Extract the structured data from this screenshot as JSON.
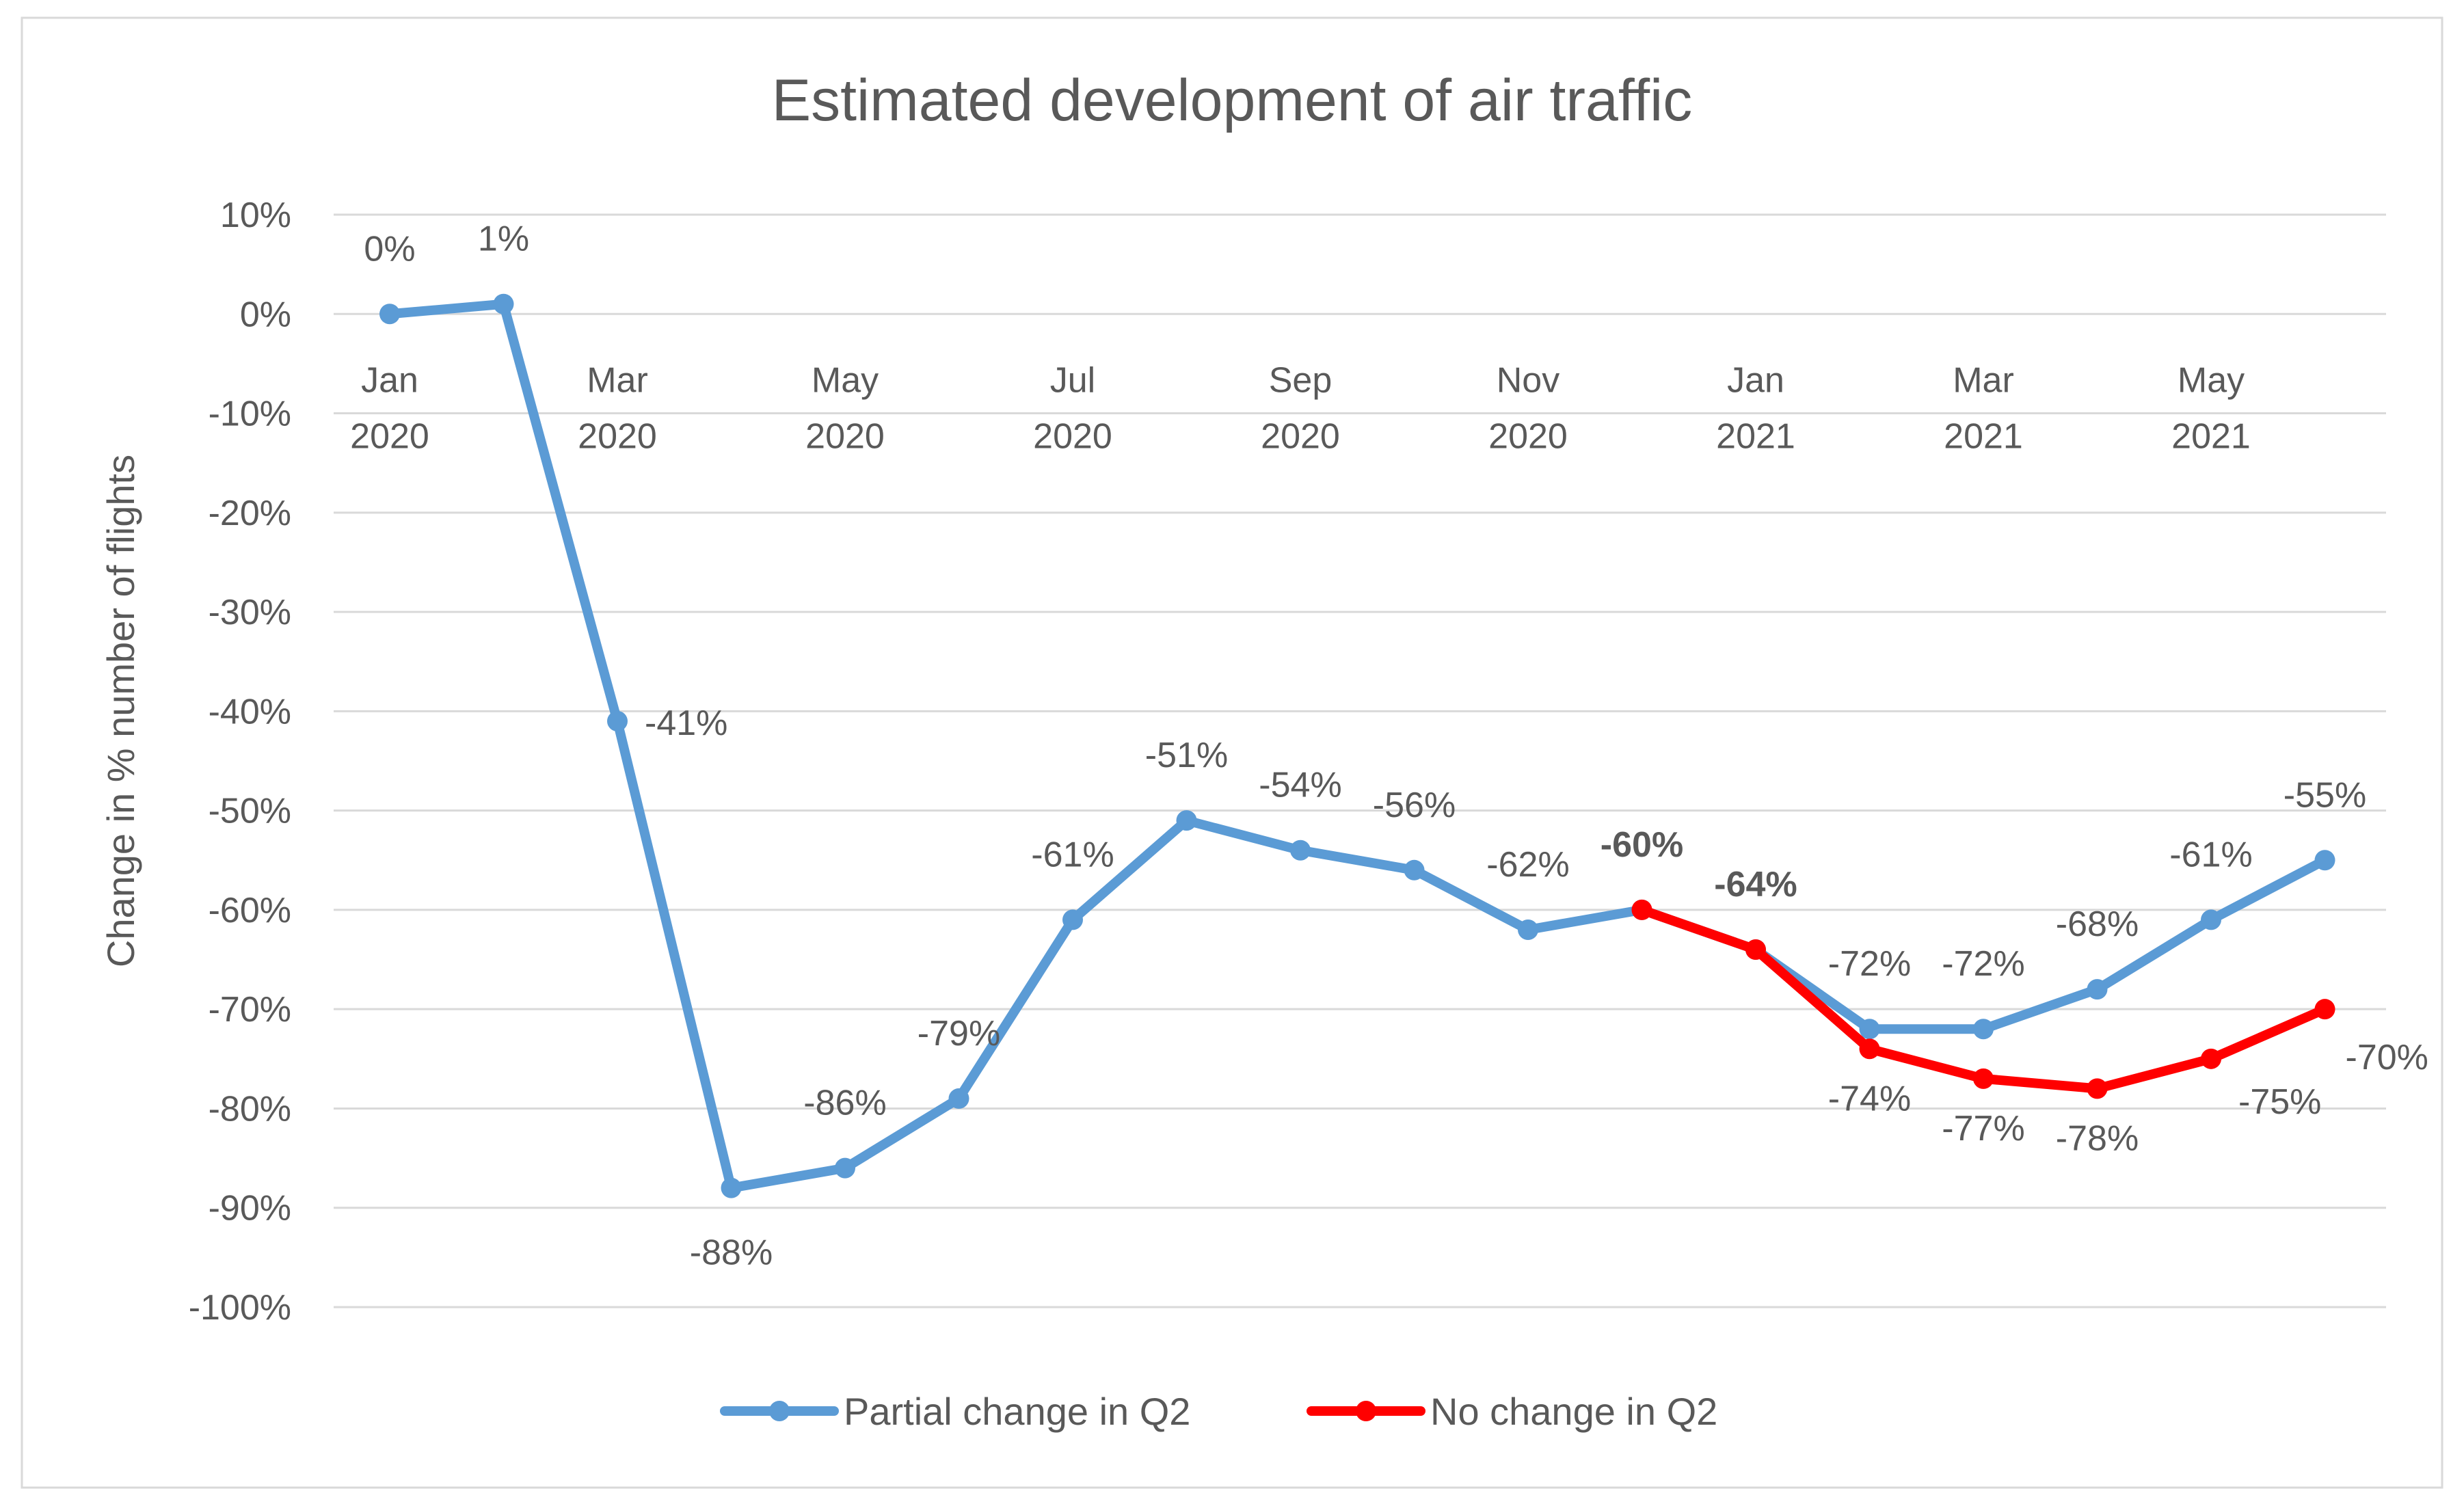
{
  "chart_data": {
    "type": "line",
    "title": "Estimated development of air traffic",
    "ylabel": "Change in % number of flights",
    "xlabel": "",
    "ylim": [
      -100,
      10
    ],
    "ytick_step": 10,
    "ytick_labels": [
      "10%",
      "0%",
      "-10%",
      "-20%",
      "-30%",
      "-40%",
      "-50%",
      "-60%",
      "-70%",
      "-80%",
      "-90%",
      "-100%"
    ],
    "x_positions": 18,
    "category_labels": [
      {
        "index": 0,
        "month": "Jan",
        "year": "2020"
      },
      {
        "index": 2,
        "month": "Mar",
        "year": "2020"
      },
      {
        "index": 4,
        "month": "May",
        "year": "2020"
      },
      {
        "index": 6,
        "month": "Jul",
        "year": "2020"
      },
      {
        "index": 8,
        "month": "Sep",
        "year": "2020"
      },
      {
        "index": 10,
        "month": "Nov",
        "year": "2020"
      },
      {
        "index": 12,
        "month": "Jan",
        "year": "2021"
      },
      {
        "index": 14,
        "month": "Mar",
        "year": "2021"
      },
      {
        "index": 16,
        "month": "May",
        "year": "2021"
      }
    ],
    "series": [
      {
        "name": "Partial change in Q2",
        "color": "#5b9bd5",
        "start_index": 0,
        "values": [
          0,
          1,
          -41,
          -88,
          -86,
          -79,
          -61,
          -51,
          -54,
          -56,
          -62,
          -60,
          -64,
          -72,
          -72,
          -68,
          -61,
          -55
        ],
        "labels": [
          "0%",
          "1%",
          "-41%",
          "-88%",
          "-86%",
          "-79%",
          "-61%",
          "-51%",
          "-54%",
          "-56%",
          "-62%",
          "",
          "",
          "-72%",
          "-72%",
          "-68%",
          "-61%",
          "-55%"
        ]
      },
      {
        "name": "No change in Q2",
        "color": "#ff0000",
        "start_index": 11,
        "values": [
          -60,
          -64,
          -74,
          -77,
          -78,
          -75,
          -70
        ],
        "labels": [
          "-60%",
          "-64%",
          "-74%",
          "-77%",
          "-78%",
          "-75%",
          "-70%"
        ]
      }
    ],
    "legend": {
      "placement": "bottom-center"
    }
  }
}
